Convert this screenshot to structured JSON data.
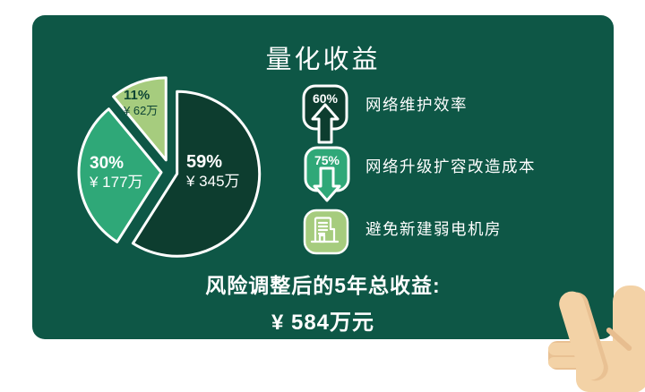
{
  "title": "量化收益",
  "card": {
    "background": "#0e5746"
  },
  "chart_data": {
    "type": "pie",
    "title": "量化收益",
    "unit": "万元",
    "direction": "clockwise",
    "start_angle_deg": 0,
    "exploded": true,
    "slices": [
      {
        "percent": 59,
        "percent_label": "59%",
        "amount_label": "¥ 345万",
        "amount_wan": 345,
        "color": "#0d3d2f",
        "label_color": "#ffffff"
      },
      {
        "percent": 30,
        "percent_label": "30%",
        "amount_label": "¥ 177万",
        "amount_wan": 177,
        "color": "#2fa878",
        "label_color": "#ffffff"
      },
      {
        "percent": 11,
        "percent_label": "11%",
        "amount_label": "¥ 62万",
        "amount_wan": 62,
        "color": "#a6cc7e",
        "label_color": "#0d4434"
      }
    ]
  },
  "metrics": [
    {
      "badge": "60%",
      "direction": "up",
      "icon": "arrow-up-badge",
      "badge_color": "#0d3d2f",
      "label": "网络维护效率"
    },
    {
      "badge": "75%",
      "direction": "down",
      "icon": "arrow-down-badge",
      "badge_color": "#2fa878",
      "label": "网络升级扩容改造成本"
    },
    {
      "badge": "",
      "direction": "none",
      "icon": "building-badge",
      "badge_color": "#a6cc7e",
      "label": "避免新建弱电机房"
    }
  ],
  "summary": {
    "line1": "风险调整后的5年总收益:",
    "line2": "¥ 584万元"
  },
  "colors": {
    "card_bg": "#0e5746",
    "dark_green": "#0d3d2f",
    "mid_green": "#2fa878",
    "light_green": "#a6cc7e",
    "text_white": "#ffffff",
    "pie_stroke": "#ffffff",
    "hand_skin": "#f3d2a6",
    "hand_shade": "#e9c193"
  }
}
